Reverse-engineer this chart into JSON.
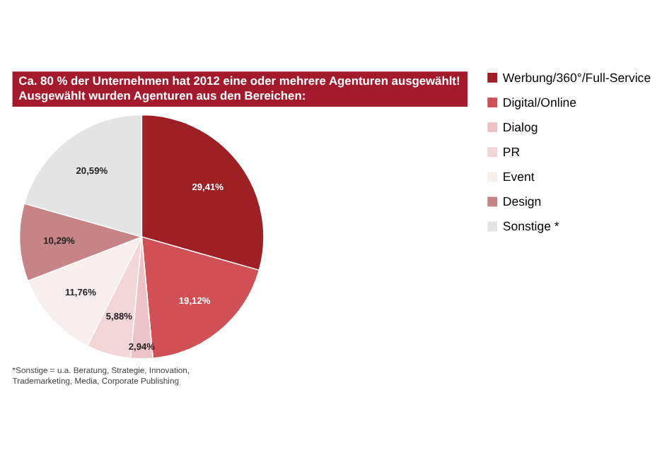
{
  "chart_data": {
    "type": "pie",
    "title": "Ca. 80 % der Unternehmen hat 2012 eine oder mehrere Agenturen ausgewählt!",
    "subtitle": "Ausgewählt wurden Agenturen aus den Bereichen:",
    "categories": [
      "Werbung/360°/Full-Service",
      "Digital/Online",
      "Dialog",
      "PR",
      "Event",
      "Design",
      "Sonstige *"
    ],
    "values": [
      29.41,
      19.12,
      2.94,
      5.88,
      11.76,
      10.29,
      20.59
    ],
    "value_labels": [
      "29,41%",
      "19,12%",
      "2,94%",
      "5,88%",
      "11,76%",
      "10,29%",
      "20,59%"
    ],
    "colors": [
      "#9e1f24",
      "#d05055",
      "#ecc4c8",
      "#f2d6d8",
      "#f8eeee",
      "#c78486",
      "#e4e4e4"
    ],
    "legend": "right",
    "annotations": [
      "*Sonstige = u.a. Beratung, Strategie, Innovation, Trademarketing, Media, Corporate Publishing"
    ]
  }
}
